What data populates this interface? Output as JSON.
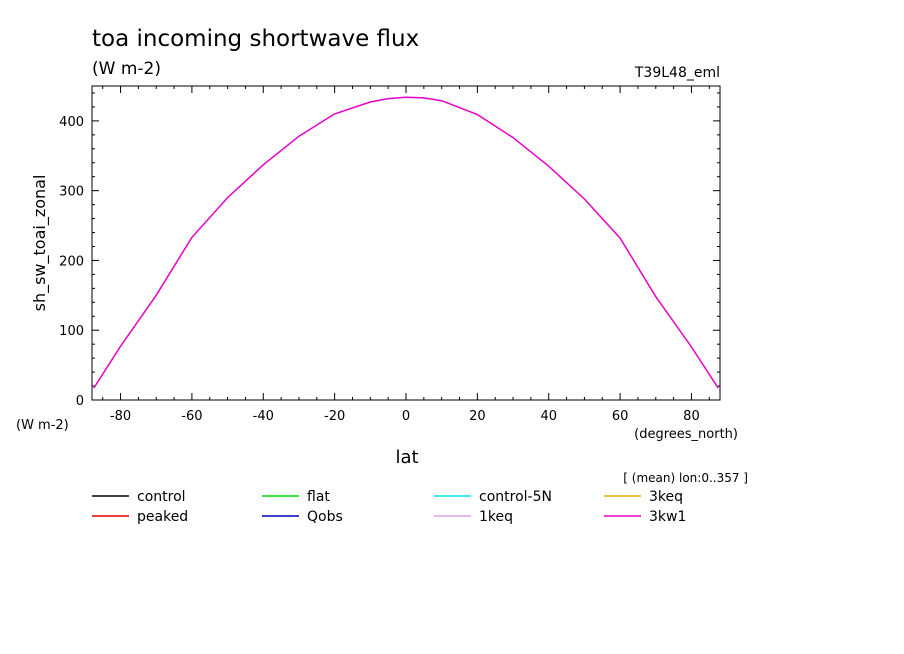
{
  "chart_data": {
    "type": "line",
    "title": "toa incoming shortwave flux",
    "subtitle": "(W m-2)",
    "run_label": "T39L48_eml",
    "xlabel": "lat",
    "xunits": "(degrees_north)",
    "ylabel": "sh_sw_toai_zonal",
    "yunits": "(W m-2)",
    "annotation": "[ (mean) lon:0..357 ]",
    "xlim": [
      -88,
      88
    ],
    "ylim": [
      0,
      450
    ],
    "xticks": [
      -80,
      -60,
      -40,
      -20,
      0,
      20,
      40,
      60,
      80
    ],
    "yticks": [
      0,
      100,
      200,
      300,
      400
    ],
    "grid": false,
    "legend_position": "bottom",
    "x": [
      -87.5,
      -80,
      -70,
      -60,
      -50,
      -40,
      -30,
      -20,
      -10,
      -5,
      0,
      5,
      10,
      20,
      30,
      40,
      50,
      60,
      70,
      80,
      87.5
    ],
    "series": [
      {
        "name": "control",
        "color": "#000000",
        "values": null
      },
      {
        "name": "flat",
        "color": "#00e000",
        "values": null
      },
      {
        "name": "control-5N",
        "color": "#00e6e6",
        "values": null
      },
      {
        "name": "3keq",
        "color": "#e6b400",
        "values": null
      },
      {
        "name": "peaked",
        "color": "#e60000",
        "values": null
      },
      {
        "name": "Qobs",
        "color": "#0000b4",
        "values": null
      },
      {
        "name": "1keq",
        "color": "#e6a0e6",
        "values": null
      },
      {
        "name": "3kw1",
        "color": "#e600c8",
        "values": [
          17,
          77,
          150,
          233,
          290,
          337,
          378,
          410,
          427,
          432,
          434,
          433,
          429,
          409,
          376,
          335,
          288,
          232,
          148,
          76,
          17
        ]
      }
    ]
  }
}
